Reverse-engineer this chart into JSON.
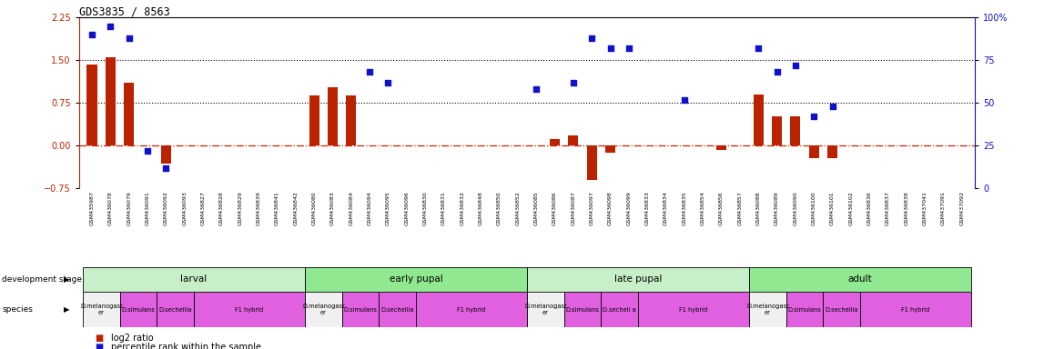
{
  "title": "GDS3835 / 8563",
  "samples": [
    "GSM435987",
    "GSM436078",
    "GSM436079",
    "GSM436091",
    "GSM436092",
    "GSM436093",
    "GSM436827",
    "GSM436828",
    "GSM436829",
    "GSM436839",
    "GSM436841",
    "GSM436842",
    "GSM436080",
    "GSM436083",
    "GSM436084",
    "GSM436094",
    "GSM436095",
    "GSM436096",
    "GSM436830",
    "GSM436831",
    "GSM436832",
    "GSM436848",
    "GSM436850",
    "GSM436852",
    "GSM436085",
    "GSM436086",
    "GSM436087",
    "GSM436097",
    "GSM436098",
    "GSM436099",
    "GSM436833",
    "GSM436834",
    "GSM436835",
    "GSM436854",
    "GSM436856",
    "GSM436857",
    "GSM436088",
    "GSM436089",
    "GSM436090",
    "GSM436100",
    "GSM436101",
    "GSM436102",
    "GSM436836",
    "GSM436837",
    "GSM436838",
    "GSM437041",
    "GSM437091",
    "GSM437092"
  ],
  "log2_ratio": [
    1.43,
    1.55,
    1.1,
    0.0,
    -0.32,
    0.0,
    0.0,
    0.0,
    0.0,
    0.0,
    0.0,
    0.0,
    0.88,
    1.02,
    0.88,
    0.0,
    0.0,
    0.0,
    0.0,
    0.0,
    0.0,
    0.0,
    0.0,
    0.0,
    0.0,
    0.12,
    0.18,
    -0.6,
    -0.12,
    0.0,
    0.0,
    0.0,
    0.0,
    0.0,
    -0.08,
    0.0,
    0.9,
    0.52,
    0.52,
    -0.22,
    -0.22,
    0.0,
    0.0,
    0.0,
    0.0,
    0.0,
    0.0,
    0.0
  ],
  "percentile": [
    90,
    95,
    88,
    22,
    12,
    null,
    null,
    null,
    null,
    null,
    null,
    null,
    null,
    null,
    null,
    68,
    62,
    null,
    null,
    null,
    null,
    null,
    null,
    null,
    58,
    null,
    62,
    88,
    82,
    82,
    null,
    null,
    52,
    null,
    null,
    null,
    82,
    68,
    72,
    42,
    48,
    null,
    null,
    null,
    null,
    null,
    null,
    null
  ],
  "dev_stages": [
    {
      "label": "larval",
      "start": 0,
      "end": 11,
      "color": "#c8f0c8"
    },
    {
      "label": "early pupal",
      "start": 12,
      "end": 23,
      "color": "#90e890"
    },
    {
      "label": "late pupal",
      "start": 24,
      "end": 35,
      "color": "#c8f0c8"
    },
    {
      "label": "adult",
      "start": 36,
      "end": 47,
      "color": "#90e890"
    }
  ],
  "species_groups": [
    {
      "label": "D.melanogast\ner",
      "start": 0,
      "end": 1,
      "color": "#f0f0f0"
    },
    {
      "label": "D.simulans",
      "start": 2,
      "end": 3,
      "color": "#e060e0"
    },
    {
      "label": "D.sechellia",
      "start": 4,
      "end": 5,
      "color": "#e060e0"
    },
    {
      "label": "F1 hybrid",
      "start": 6,
      "end": 11,
      "color": "#e060e0"
    },
    {
      "label": "D.melanogast\ner",
      "start": 12,
      "end": 13,
      "color": "#f0f0f0"
    },
    {
      "label": "D.simulans",
      "start": 14,
      "end": 15,
      "color": "#e060e0"
    },
    {
      "label": "D.sechellia",
      "start": 16,
      "end": 17,
      "color": "#e060e0"
    },
    {
      "label": "F1 hybrid",
      "start": 18,
      "end": 23,
      "color": "#e060e0"
    },
    {
      "label": "D.melanogast\ner",
      "start": 24,
      "end": 25,
      "color": "#f0f0f0"
    },
    {
      "label": "D.simulans",
      "start": 26,
      "end": 27,
      "color": "#e060e0"
    },
    {
      "label": "D.sechell a",
      "start": 28,
      "end": 29,
      "color": "#e060e0"
    },
    {
      "label": "F1 hybrid",
      "start": 30,
      "end": 35,
      "color": "#e060e0"
    },
    {
      "label": "D.melanogast\ner",
      "start": 36,
      "end": 37,
      "color": "#f0f0f0"
    },
    {
      "label": "D.simulans",
      "start": 38,
      "end": 39,
      "color": "#e060e0"
    },
    {
      "label": "D.sechellia",
      "start": 40,
      "end": 41,
      "color": "#e060e0"
    },
    {
      "label": "F1 hybrid",
      "start": 42,
      "end": 47,
      "color": "#e060e0"
    }
  ],
  "left_ylim": [
    -0.75,
    2.25
  ],
  "right_ylim": [
    0,
    100
  ],
  "left_yticks": [
    -0.75,
    0.0,
    0.75,
    1.5,
    2.25
  ],
  "right_yticks": [
    0,
    25,
    50,
    75,
    100
  ],
  "hlines": [
    0.75,
    1.5
  ],
  "bar_color": "#bb2200",
  "scatter_color": "#1111cc",
  "zero_line_color": "#cc2200",
  "bg_color": "#ffffff",
  "sample_bg_color": "#e0e0e0"
}
